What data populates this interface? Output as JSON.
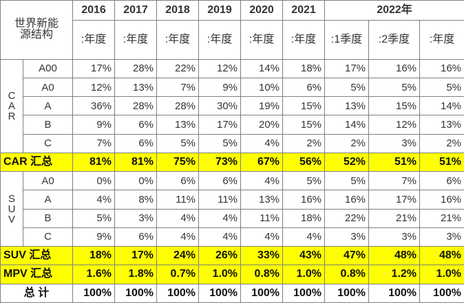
{
  "corner_label": [
    "世界新能",
    "源结构"
  ],
  "years": [
    "2016",
    "2017",
    "2018",
    "2019",
    "2020",
    "2021"
  ],
  "year_2022": "2022年",
  "sub_headers": [
    ":年度",
    ":年度",
    ":年度",
    ":年度",
    ":年度",
    ":年度",
    ":1季度",
    ":2季度",
    ":年度"
  ],
  "car_group": {
    "letters": [
      "C",
      "A",
      "R"
    ]
  },
  "car_rows": [
    {
      "label": "A00",
      "values": [
        "17%",
        "28%",
        "22%",
        "12%",
        "14%",
        "18%",
        "17%",
        "16%",
        "16%"
      ]
    },
    {
      "label": "A0",
      "values": [
        "12%",
        "13%",
        "7%",
        "9%",
        "10%",
        "6%",
        "5%",
        "5%",
        "5%"
      ]
    },
    {
      "label": "A",
      "values": [
        "36%",
        "28%",
        "28%",
        "30%",
        "19%",
        "15%",
        "13%",
        "15%",
        "14%"
      ]
    },
    {
      "label": "B",
      "values": [
        "9%",
        "6%",
        "13%",
        "17%",
        "20%",
        "15%",
        "14%",
        "12%",
        "13%"
      ]
    },
    {
      "label": "C",
      "values": [
        "7%",
        "6%",
        "5%",
        "5%",
        "4%",
        "2%",
        "2%",
        "3%",
        "2%"
      ]
    }
  ],
  "car_total": {
    "label": "CAR 汇总",
    "values": [
      "81%",
      "81%",
      "75%",
      "73%",
      "67%",
      "56%",
      "52%",
      "51%",
      "51%"
    ]
  },
  "suv_group": {
    "letters": [
      "S",
      "U",
      "V"
    ]
  },
  "suv_rows": [
    {
      "label": "A0",
      "values": [
        "0%",
        "0%",
        "6%",
        "6%",
        "4%",
        "5%",
        "5%",
        "7%",
        "6%"
      ]
    },
    {
      "label": "A",
      "values": [
        "4%",
        "8%",
        "11%",
        "11%",
        "13%",
        "16%",
        "16%",
        "17%",
        "16%"
      ]
    },
    {
      "label": "B",
      "values": [
        "5%",
        "3%",
        "4%",
        "4%",
        "11%",
        "18%",
        "22%",
        "21%",
        "21%"
      ]
    },
    {
      "label": "C",
      "values": [
        "9%",
        "6%",
        "4%",
        "4%",
        "4%",
        "4%",
        "3%",
        "3%",
        "3%"
      ]
    }
  ],
  "suv_total": {
    "label": "SUV 汇总",
    "values": [
      "18%",
      "17%",
      "24%",
      "26%",
      "33%",
      "43%",
      "47%",
      "48%",
      "48%"
    ]
  },
  "mpv_total": {
    "label": "MPV 汇总",
    "values": [
      "1.6%",
      "1.8%",
      "0.7%",
      "1.0%",
      "0.8%",
      "1.0%",
      "0.8%",
      "1.2%",
      "1.0%"
    ]
  },
  "grand_total": {
    "label": "总 计",
    "values": [
      "100%",
      "100%",
      "100%",
      "100%",
      "100%",
      "100%",
      "100%",
      "100%",
      "100%"
    ]
  },
  "colors": {
    "highlight": "#ffff00",
    "border": "#7f7f7f",
    "text": "#333333"
  }
}
